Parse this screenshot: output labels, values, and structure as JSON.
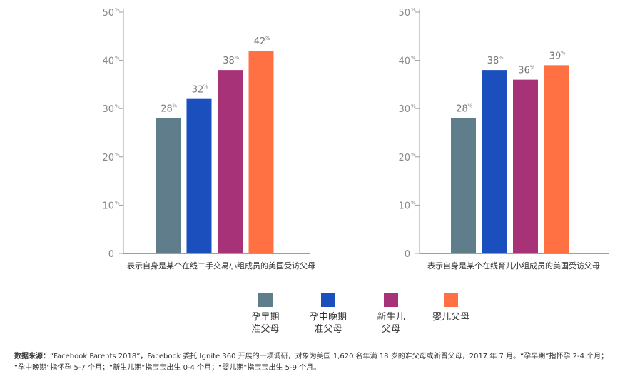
{
  "chart_data": [
    {
      "type": "bar",
      "categories": [
        "孕早期准父母",
        "孕中晚期准父母",
        "新生儿父母",
        "婴儿父母"
      ],
      "values": [
        28,
        32,
        38,
        42
      ],
      "value_labels": [
        "28",
        "32",
        "38",
        "42"
      ],
      "xlabel": "表示自身是某个在线二手交易小组成员的美国受访父母",
      "ylabel": "",
      "ylim": [
        0,
        50
      ],
      "yticks": [
        "0",
        "10",
        "20",
        "30",
        "40",
        "50"
      ],
      "unit_symbol": "%",
      "grid": false
    },
    {
      "type": "bar",
      "categories": [
        "孕早期准父母",
        "孕中晚期准父母",
        "新生儿父母",
        "婴儿父母"
      ],
      "values": [
        28,
        38,
        36,
        39
      ],
      "value_labels": [
        "28",
        "38",
        "36",
        "39"
      ],
      "xlabel": "表示自身是某个在线育儿小组成员的美国受访父母",
      "ylabel": "",
      "ylim": [
        0,
        50
      ],
      "yticks": [
        "0",
        "10",
        "20",
        "30",
        "40",
        "50"
      ],
      "unit_symbol": "%",
      "grid": false
    }
  ],
  "colors": [
    "#607d8b",
    "#1a4fbd",
    "#a83278",
    "#ff7043"
  ],
  "legend": [
    {
      "line1": "孕早期",
      "line2": "准父母"
    },
    {
      "line1": "孕中晚期",
      "line2": "准父母"
    },
    {
      "line1": "新生儿",
      "line2": "父母"
    },
    {
      "line1": "婴儿父母",
      "line2": ""
    }
  ],
  "source": {
    "label": "数据来源：",
    "line1": "“Facebook Parents 2018”，Facebook 委托 Ignite 360 开展的一项调研，对象为美国 1,620 名年满 18 岁的准父母或新晋父母，2017 年 7 月。“孕早期”指怀孕 2-4 个月；",
    "line2": "“孕中晚期”指怀孕 5-7 个月；“新生儿期”指宝宝出生 0-4 个月；“婴儿期”指宝宝出生 5-9 个月。"
  }
}
